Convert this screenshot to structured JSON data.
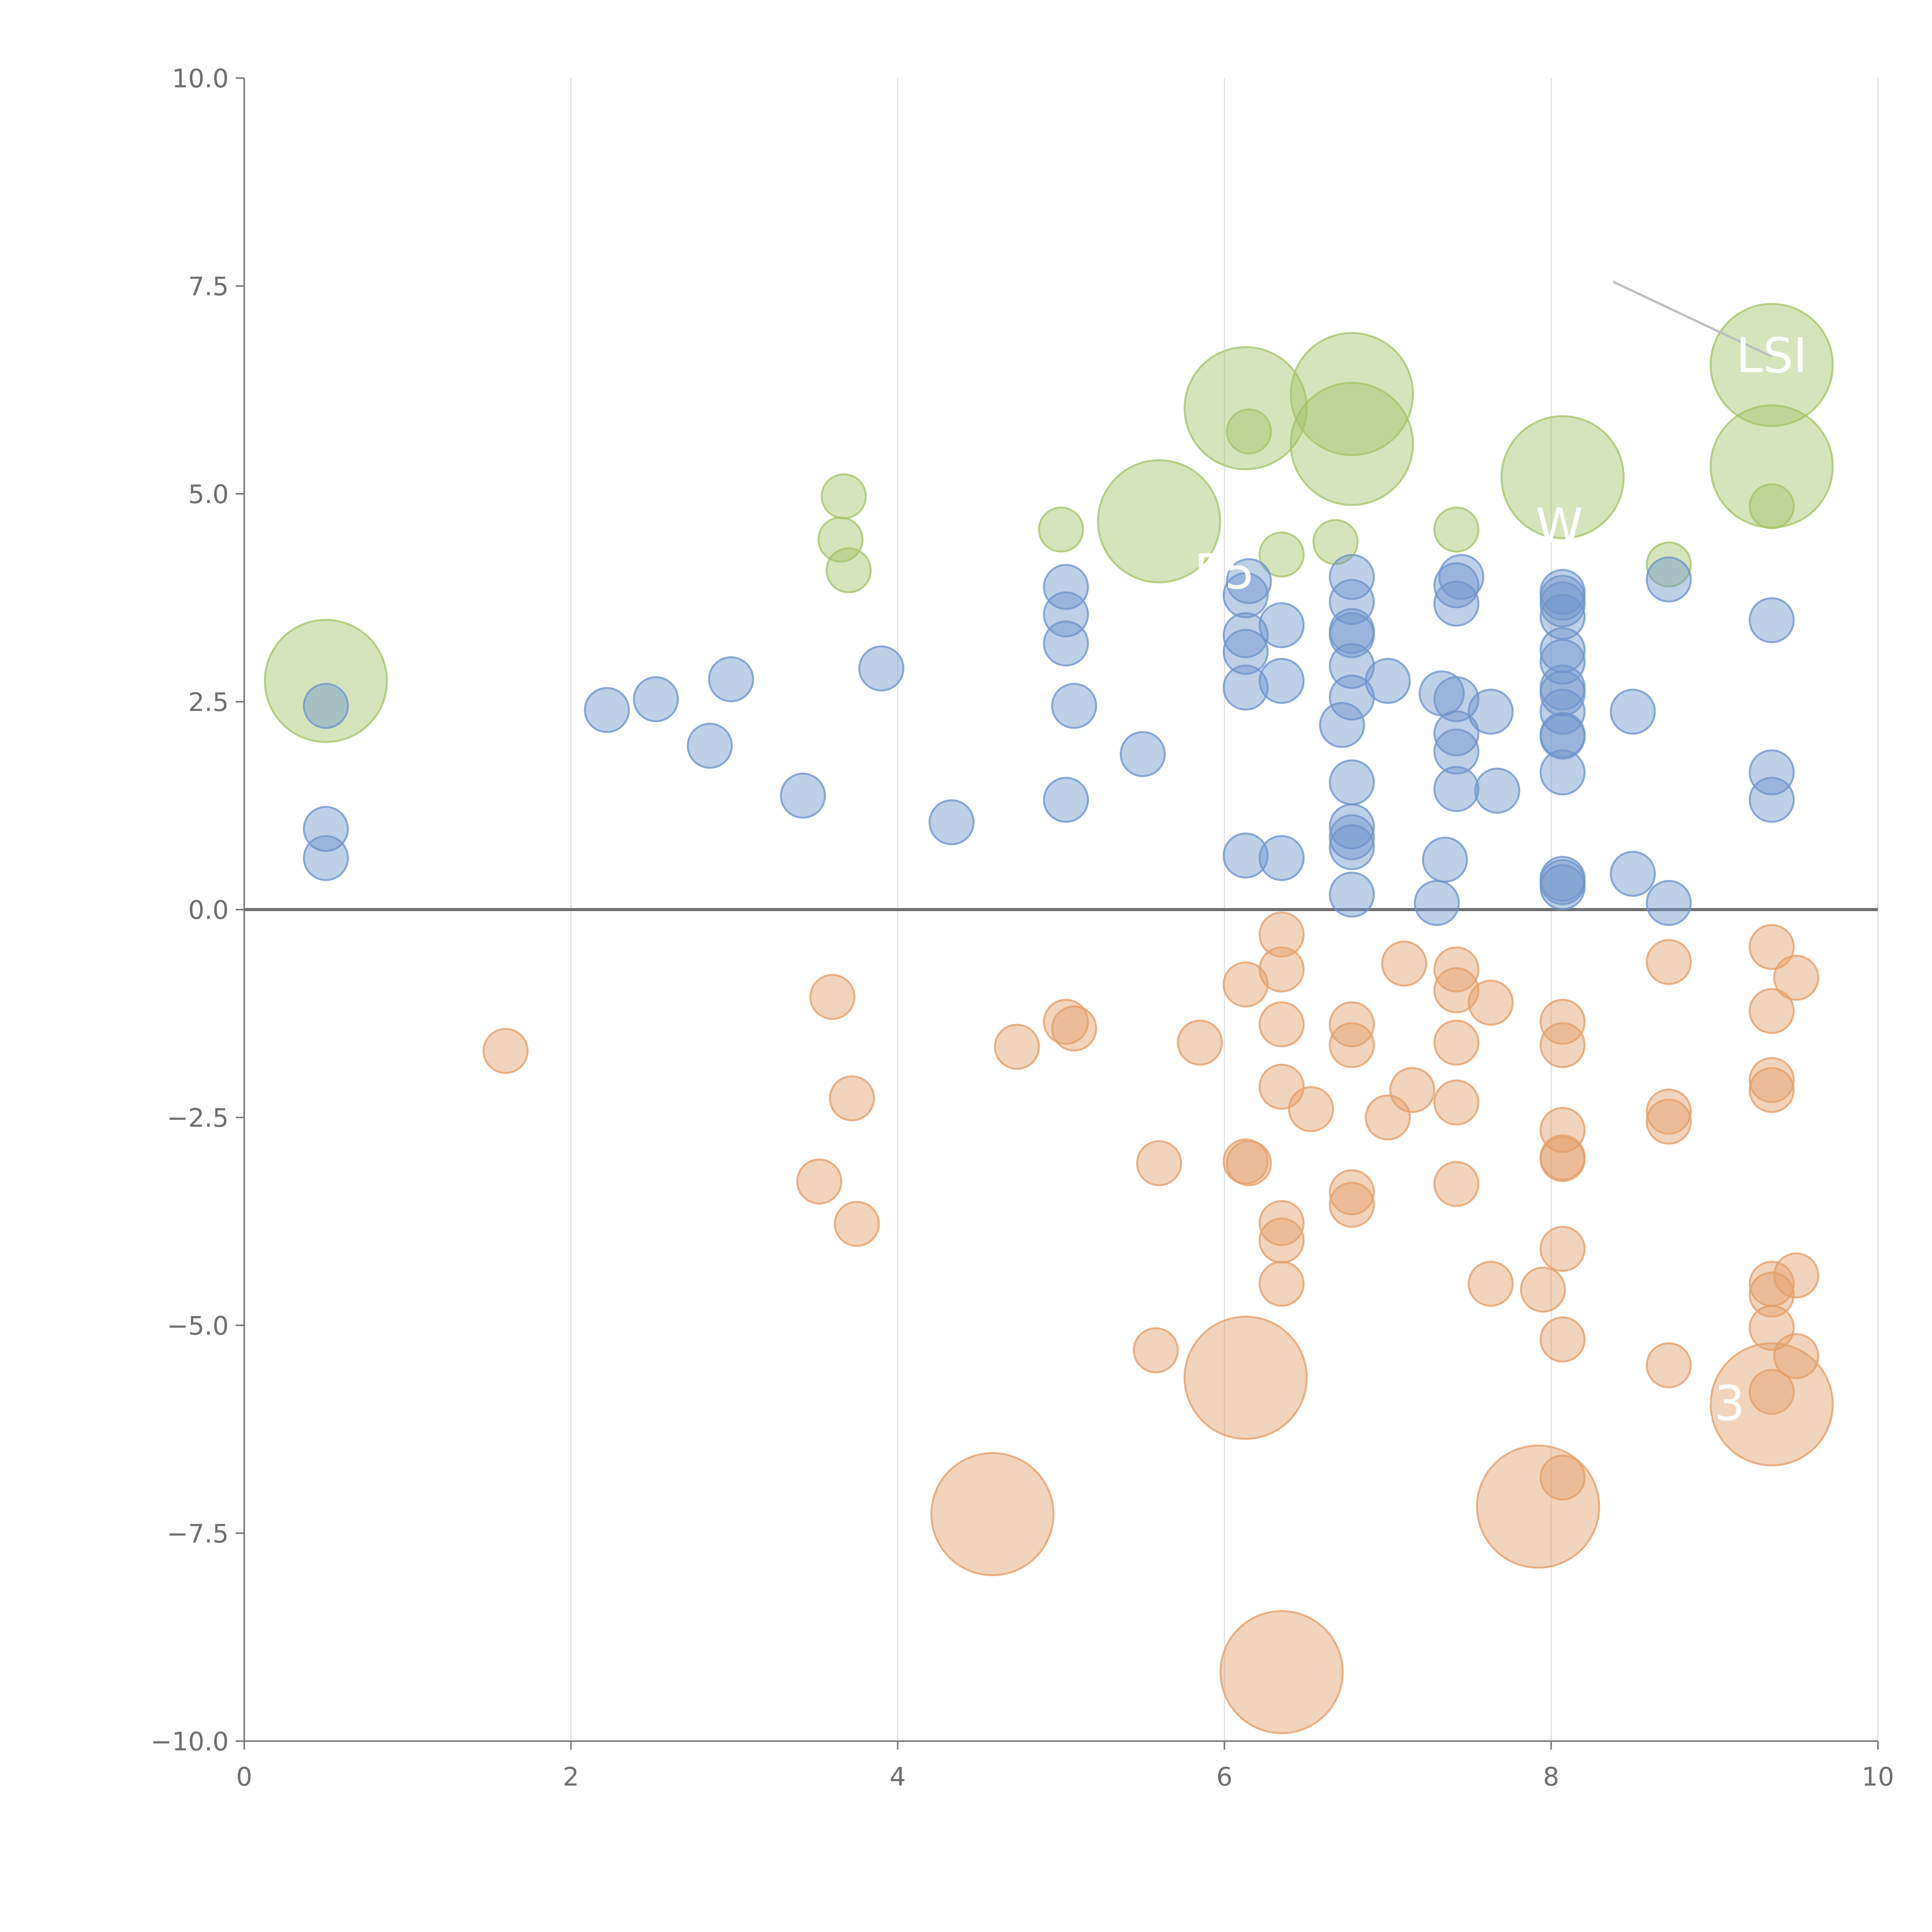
{
  "chart_data": {
    "type": "scatter",
    "variant": "bubble",
    "title": "",
    "xlabel": "",
    "ylabel": "",
    "xlim": [
      0,
      10
    ],
    "ylim": [
      -10,
      10
    ],
    "x_ticks": [
      0,
      2,
      4,
      6,
      8,
      10
    ],
    "y_ticks": [
      -10.0,
      -7.5,
      -5.0,
      -2.5,
      0.0,
      2.5,
      5.0,
      7.5,
      10.0
    ],
    "x_tick_labels": [
      "0",
      "2",
      "4",
      "6",
      "8",
      "10"
    ],
    "y_tick_labels": [
      "−10.0",
      "−7.5",
      "−5.0",
      "−2.5",
      "0.0",
      "2.5",
      "5.0",
      "7.5",
      "10.0"
    ],
    "vertical_gridlines": true,
    "zero_line": true,
    "legend": "none",
    "size_scale": {
      "small": 1,
      "large": 4
    },
    "series": [
      {
        "name": "green",
        "color": "#a5c46a",
        "points": [
          [
            0.5,
            2.75,
            4
          ],
          [
            3.67,
            4.97,
            1
          ],
          [
            3.65,
            4.45,
            1
          ],
          [
            3.7,
            4.08,
            1
          ],
          [
            5.0,
            4.57,
            1
          ],
          [
            5.6,
            4.67,
            4
          ],
          [
            6.13,
            6.03,
            4
          ],
          [
            6.15,
            5.75,
            1
          ],
          [
            6.35,
            4.27,
            1
          ],
          [
            6.68,
            4.42,
            1
          ],
          [
            6.78,
            6.2,
            4
          ],
          [
            6.78,
            5.6,
            4
          ],
          [
            7.42,
            4.57,
            1
          ],
          [
            8.07,
            5.2,
            4
          ],
          [
            8.72,
            4.15,
            1
          ],
          [
            9.35,
            6.55,
            4
          ],
          [
            9.35,
            5.33,
            4
          ],
          [
            9.35,
            4.85,
            1
          ]
        ]
      },
      {
        "name": "blue",
        "color": "#6f95cc",
        "points": [
          [
            0.5,
            2.45,
            1
          ],
          [
            0.5,
            0.97,
            1
          ],
          [
            0.5,
            0.62,
            1
          ],
          [
            2.22,
            2.4,
            1
          ],
          [
            2.52,
            2.53,
            1
          ],
          [
            2.85,
            1.97,
            1
          ],
          [
            2.98,
            2.77,
            1
          ],
          [
            3.42,
            1.37,
            1
          ],
          [
            3.9,
            2.9,
            1
          ],
          [
            4.33,
            1.05,
            1
          ],
          [
            5.03,
            3.88,
            1
          ],
          [
            5.03,
            3.55,
            1
          ],
          [
            5.03,
            3.2,
            1
          ],
          [
            5.03,
            1.32,
            1
          ],
          [
            5.08,
            2.45,
            1
          ],
          [
            5.5,
            1.87,
            1
          ],
          [
            6.13,
            3.78,
            1
          ],
          [
            6.13,
            3.3,
            1
          ],
          [
            6.13,
            3.1,
            1
          ],
          [
            6.13,
            2.67,
            1
          ],
          [
            6.13,
            0.65,
            1
          ],
          [
            6.15,
            3.95,
            1
          ],
          [
            6.35,
            3.42,
            1
          ],
          [
            6.35,
            2.75,
            1
          ],
          [
            6.35,
            0.62,
            1
          ],
          [
            6.72,
            2.22,
            1
          ],
          [
            6.78,
            4.0,
            1
          ],
          [
            6.78,
            3.7,
            1
          ],
          [
            6.78,
            3.35,
            1
          ],
          [
            6.78,
            3.3,
            1
          ],
          [
            6.78,
            2.93,
            1
          ],
          [
            6.78,
            2.55,
            1
          ],
          [
            6.78,
            1.53,
            1
          ],
          [
            6.78,
            1.0,
            1
          ],
          [
            6.78,
            0.87,
            1
          ],
          [
            6.78,
            0.75,
            1
          ],
          [
            6.78,
            0.18,
            1
          ],
          [
            7.0,
            2.75,
            1
          ],
          [
            7.3,
            0.08,
            1
          ],
          [
            7.33,
            2.6,
            1
          ],
          [
            7.35,
            0.6,
            1
          ],
          [
            7.42,
            3.9,
            1
          ],
          [
            7.42,
            3.68,
            1
          ],
          [
            7.42,
            2.53,
            1
          ],
          [
            7.42,
            2.12,
            1
          ],
          [
            7.42,
            1.9,
            1
          ],
          [
            7.42,
            1.45,
            1
          ],
          [
            7.45,
            4.0,
            1
          ],
          [
            7.63,
            2.38,
            1
          ],
          [
            7.67,
            1.43,
            1
          ],
          [
            8.07,
            3.82,
            1
          ],
          [
            8.07,
            3.75,
            1
          ],
          [
            8.07,
            3.67,
            1
          ],
          [
            8.07,
            3.52,
            1
          ],
          [
            8.07,
            3.12,
            1
          ],
          [
            8.07,
            2.98,
            1
          ],
          [
            8.07,
            2.67,
            1
          ],
          [
            8.07,
            2.6,
            1
          ],
          [
            8.07,
            2.38,
            1
          ],
          [
            8.07,
            2.1,
            1
          ],
          [
            8.07,
            2.08,
            1
          ],
          [
            8.07,
            1.65,
            1
          ],
          [
            8.07,
            0.37,
            1
          ],
          [
            8.07,
            0.33,
            1
          ],
          [
            8.07,
            0.27,
            1
          ],
          [
            8.5,
            2.38,
            1
          ],
          [
            8.5,
            0.43,
            1
          ],
          [
            8.72,
            3.97,
            1
          ],
          [
            8.72,
            0.08,
            1
          ],
          [
            9.35,
            3.48,
            1
          ],
          [
            9.35,
            1.65,
            1
          ],
          [
            9.35,
            1.32,
            1
          ]
        ]
      },
      {
        "name": "orange",
        "color": "#e39f6a",
        "points": [
          [
            1.6,
            -1.7,
            1
          ],
          [
            3.52,
            -3.27,
            1
          ],
          [
            3.6,
            -1.05,
            1
          ],
          [
            3.72,
            -2.27,
            1
          ],
          [
            3.75,
            -3.78,
            1
          ],
          [
            4.58,
            -7.27,
            4
          ],
          [
            4.73,
            -1.65,
            1
          ],
          [
            5.03,
            -1.35,
            1
          ],
          [
            5.08,
            -1.43,
            1
          ],
          [
            5.58,
            -5.3,
            1
          ],
          [
            5.6,
            -3.05,
            1
          ],
          [
            5.85,
            -1.6,
            1
          ],
          [
            6.13,
            -5.63,
            4
          ],
          [
            6.13,
            -0.9,
            1
          ],
          [
            6.13,
            -3.03,
            1
          ],
          [
            6.15,
            -3.05,
            1
          ],
          [
            6.35,
            -9.17,
            4
          ],
          [
            6.35,
            -0.3,
            1
          ],
          [
            6.35,
            -0.72,
            1
          ],
          [
            6.35,
            -1.38,
            1
          ],
          [
            6.35,
            -2.13,
            1
          ],
          [
            6.35,
            -3.77,
            1
          ],
          [
            6.35,
            -3.98,
            1
          ],
          [
            6.35,
            -4.5,
            1
          ],
          [
            6.53,
            -2.4,
            1
          ],
          [
            6.78,
            -1.38,
            1
          ],
          [
            6.78,
            -1.63,
            1
          ],
          [
            6.78,
            -3.4,
            1
          ],
          [
            6.78,
            -3.55,
            1
          ],
          [
            7.0,
            -2.5,
            1
          ],
          [
            7.1,
            -0.65,
            1
          ],
          [
            7.15,
            -2.17,
            1
          ],
          [
            7.42,
            -0.72,
            1
          ],
          [
            7.42,
            -0.97,
            1
          ],
          [
            7.42,
            -1.6,
            1
          ],
          [
            7.42,
            -2.32,
            1
          ],
          [
            7.42,
            -3.3,
            1
          ],
          [
            7.63,
            -1.12,
            1
          ],
          [
            7.63,
            -4.5,
            1
          ],
          [
            7.92,
            -7.18,
            4
          ],
          [
            7.95,
            -4.57,
            1
          ],
          [
            8.07,
            -1.35,
            1
          ],
          [
            8.07,
            -1.63,
            1
          ],
          [
            8.07,
            -2.65,
            1
          ],
          [
            8.07,
            -2.98,
            1
          ],
          [
            8.07,
            -3.0,
            1
          ],
          [
            8.07,
            -4.08,
            1
          ],
          [
            8.07,
            -5.17,
            1
          ],
          [
            8.07,
            -6.83,
            1
          ],
          [
            8.72,
            -0.63,
            1
          ],
          [
            8.72,
            -2.43,
            1
          ],
          [
            8.72,
            -2.55,
            1
          ],
          [
            8.72,
            -5.48,
            1
          ],
          [
            9.35,
            -5.95,
            4
          ],
          [
            9.35,
            -0.45,
            1
          ],
          [
            9.35,
            -1.22,
            1
          ],
          [
            9.35,
            -2.05,
            1
          ],
          [
            9.35,
            -2.17,
            1
          ],
          [
            9.35,
            -4.5,
            1
          ],
          [
            9.35,
            -4.63,
            1
          ],
          [
            9.35,
            -5.03,
            1
          ],
          [
            9.35,
            -5.8,
            1
          ],
          [
            9.5,
            -0.82,
            1
          ],
          [
            9.5,
            -4.4,
            1
          ],
          [
            9.5,
            -5.37,
            1
          ]
        ]
      }
    ],
    "annotations": [
      {
        "text": "LSI",
        "x": 9.35,
        "y": 6.65,
        "leader_from": [
          8.38,
          7.55
        ]
      },
      {
        "text": "E5",
        "x": 6.0,
        "y": 4.05
      },
      {
        "text": "W",
        "x": 8.05,
        "y": 4.6
      },
      {
        "text": "E3",
        "x": 9.0,
        "y": -5.95
      }
    ]
  }
}
